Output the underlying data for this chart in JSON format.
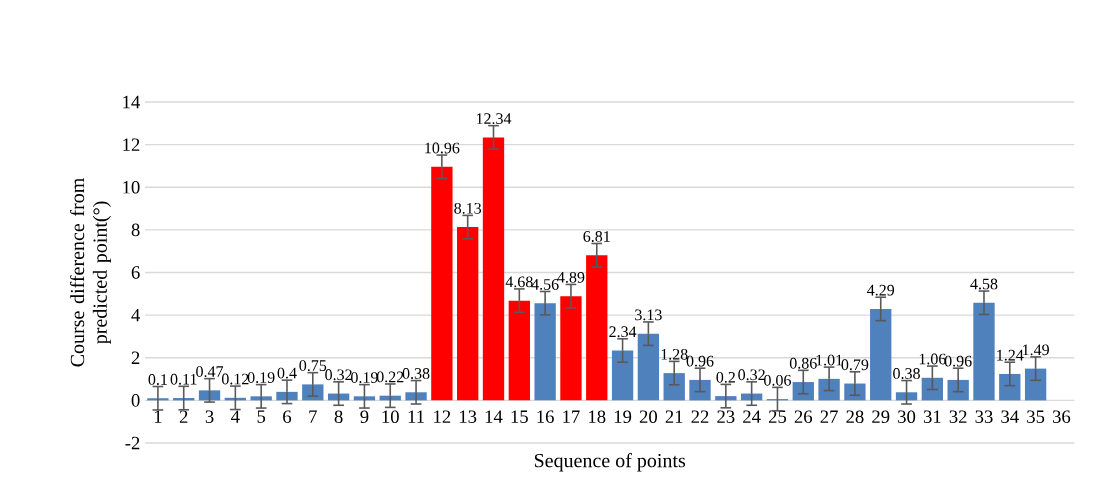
{
  "chart_data": {
    "type": "bar",
    "xlabel": "Sequence of points",
    "ylabel": "Course difference from predicted point(°)",
    "categories": [
      "1",
      "2",
      "3",
      "4",
      "5",
      "6",
      "7",
      "8",
      "9",
      "10",
      "11",
      "12",
      "13",
      "14",
      "15",
      "16",
      "17",
      "18",
      "19",
      "20",
      "21",
      "22",
      "23",
      "24",
      "25",
      "26",
      "27",
      "28",
      "29",
      "30",
      "31",
      "32",
      "33",
      "34",
      "35",
      "36"
    ],
    "values": [
      0.1,
      0.11,
      0.47,
      0.12,
      0.19,
      0.4,
      0.75,
      0.32,
      0.19,
      0.22,
      0.38,
      10.96,
      8.13,
      12.34,
      4.68,
      4.56,
      4.89,
      6.81,
      2.34,
      3.13,
      1.28,
      0.96,
      0.2,
      0.32,
      0.06,
      0.86,
      1.01,
      0.79,
      4.29,
      0.38,
      1.06,
      0.96,
      4.58,
      1.24,
      1.49,
      null
    ],
    "errors": [
      0.55,
      0.55,
      0.55,
      0.55,
      0.55,
      0.55,
      0.55,
      0.55,
      0.55,
      0.55,
      0.55,
      0.55,
      0.55,
      0.55,
      0.55,
      0.55,
      0.55,
      0.55,
      0.55,
      0.55,
      0.55,
      0.55,
      0.55,
      0.55,
      0.55,
      0.55,
      0.55,
      0.55,
      0.55,
      0.55,
      0.55,
      0.55,
      0.55,
      0.55,
      0.55,
      null
    ],
    "colors": [
      "#4f81bd",
      "#4f81bd",
      "#4f81bd",
      "#4f81bd",
      "#4f81bd",
      "#4f81bd",
      "#4f81bd",
      "#4f81bd",
      "#4f81bd",
      "#4f81bd",
      "#4f81bd",
      "#ff0000",
      "#ff0000",
      "#ff0000",
      "#ff0000",
      "#4f81bd",
      "#ff0000",
      "#ff0000",
      "#4f81bd",
      "#4f81bd",
      "#4f81bd",
      "#4f81bd",
      "#4f81bd",
      "#4f81bd",
      "#4f81bd",
      "#4f81bd",
      "#4f81bd",
      "#4f81bd",
      "#4f81bd",
      "#4f81bd",
      "#4f81bd",
      "#4f81bd",
      "#4f81bd",
      "#4f81bd",
      "#4f81bd",
      "#4f81bd"
    ],
    "ylim": [
      -2,
      14
    ],
    "yticks": [
      -2,
      0,
      2,
      4,
      6,
      8,
      10,
      12,
      14
    ],
    "grid": "y",
    "data_labels": true
  }
}
